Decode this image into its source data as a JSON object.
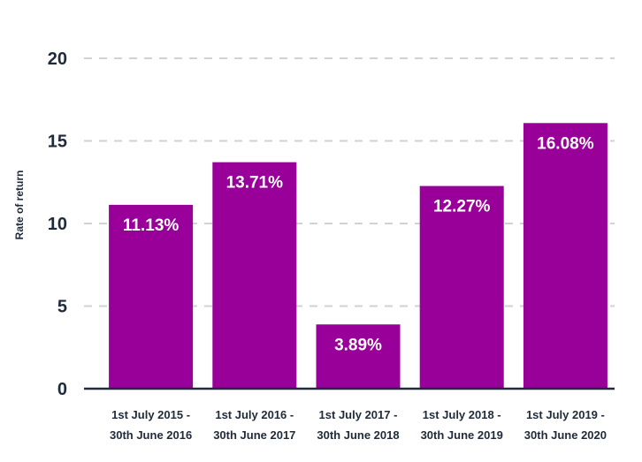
{
  "chart_data": {
    "type": "bar",
    "categories": [
      [
        "1st July 2015 -",
        "30th June 2016"
      ],
      [
        "1st July 2016 -",
        "30th June 2017"
      ],
      [
        "1st July 2017 -",
        "30th June 2018"
      ],
      [
        "1st July 2018 -",
        "30th June 2019"
      ],
      [
        "1st July 2019 -",
        "30th June 2020"
      ]
    ],
    "values": [
      11.13,
      13.71,
      3.89,
      12.27,
      16.08
    ],
    "data_labels": [
      "11.13%",
      "13.71%",
      "3.89%",
      "12.27%",
      "16.08%"
    ],
    "ylabel": "Rate of return",
    "ylim": [
      0,
      20
    ],
    "yticks": [
      0,
      5,
      10,
      15,
      20
    ],
    "grid": true,
    "bar_color": "#990099",
    "label_color": "#ffffff",
    "axis_color": "#1f2a3a",
    "grid_color": "#cfd2d6"
  }
}
